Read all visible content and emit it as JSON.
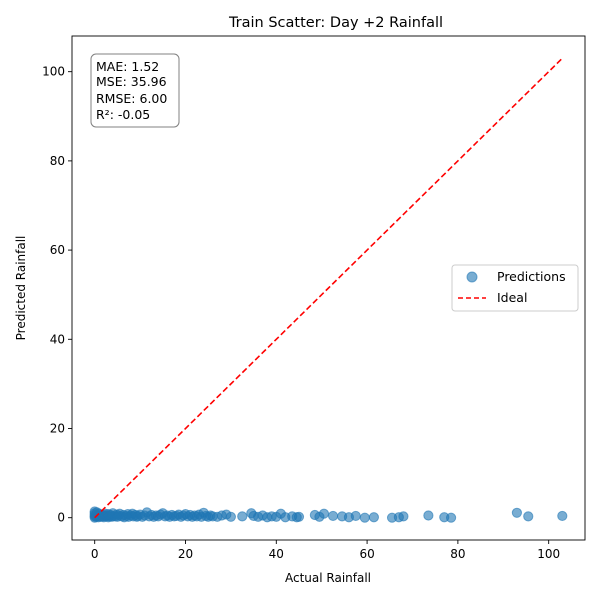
{
  "chart_data": {
    "type": "scatter",
    "title": "Train Scatter: Day +2 Rainfall",
    "xlabel": "Actual Rainfall",
    "ylabel": "Predicted Rainfall",
    "xlim": [
      -5,
      108
    ],
    "ylim": [
      -5,
      108
    ],
    "x_ticks": [
      0,
      20,
      40,
      60,
      80,
      100
    ],
    "y_ticks": [
      0,
      20,
      40,
      60,
      80,
      100
    ],
    "grid": false,
    "legend_position": "center-right",
    "legend": [
      {
        "label": "Predictions",
        "kind": "marker"
      },
      {
        "label": "Ideal",
        "kind": "dashed-line"
      }
    ],
    "stats_box": [
      "MAE: 1.52",
      "MSE: 35.96",
      "RMSE: 6.00",
      "R²: -0.05"
    ],
    "colors": {
      "points": "#1f77b4",
      "ideal": "#ff0000"
    },
    "ideal_line": {
      "x": [
        0,
        103
      ],
      "y": [
        0,
        103
      ]
    },
    "series": [
      {
        "name": "Predictions",
        "points": [
          [
            0,
            0
          ],
          [
            0,
            0.3
          ],
          [
            0,
            0.6
          ],
          [
            0,
            1.0
          ],
          [
            0,
            1.4
          ],
          [
            0.3,
            0.2
          ],
          [
            0.5,
            0.5
          ],
          [
            0.5,
            1.2
          ],
          [
            0.8,
            0.1
          ],
          [
            1.0,
            0.4
          ],
          [
            1.0,
            0.9
          ],
          [
            1.3,
            0.2
          ],
          [
            1.5,
            0.7
          ],
          [
            1.8,
            0.3
          ],
          [
            2.0,
            0.1
          ],
          [
            2.0,
            0.6
          ],
          [
            2.3,
            0.9
          ],
          [
            2.5,
            0.3
          ],
          [
            2.8,
            0.5
          ],
          [
            3.0,
            0.1
          ],
          [
            3.0,
            0.8
          ],
          [
            3.3,
            0.3
          ],
          [
            3.5,
            0.6
          ],
          [
            3.8,
            0.2
          ],
          [
            4.0,
            0.4
          ],
          [
            4.0,
            1.0
          ],
          [
            4.5,
            0.3
          ],
          [
            4.8,
            0.7
          ],
          [
            5.0,
            0.2
          ],
          [
            5.3,
            0.5
          ],
          [
            5.5,
            0.9
          ],
          [
            6.0,
            0.3
          ],
          [
            6.3,
            0.6
          ],
          [
            6.5,
            0.1
          ],
          [
            7.0,
            0.4
          ],
          [
            7.3,
            0.8
          ],
          [
            7.5,
            0.2
          ],
          [
            8.0,
            0.5
          ],
          [
            8.3,
            0.9
          ],
          [
            8.5,
            0.3
          ],
          [
            9.0,
            0.6
          ],
          [
            9.3,
            0.2
          ],
          [
            9.5,
            0.4
          ],
          [
            10.0,
            0.7
          ],
          [
            10.5,
            0.2
          ],
          [
            11.0,
            0.5
          ],
          [
            11.5,
            1.2
          ],
          [
            12.0,
            0.3
          ],
          [
            12.5,
            0.6
          ],
          [
            13.0,
            0.2
          ],
          [
            13.5,
            0.5
          ],
          [
            14.0,
            0.3
          ],
          [
            14.5,
            0.7
          ],
          [
            15.0,
            1.0
          ],
          [
            15.5,
            0.3
          ],
          [
            16.0,
            0.5
          ],
          [
            16.5,
            0.2
          ],
          [
            17.0,
            0.6
          ],
          [
            17.5,
            0.3
          ],
          [
            18.0,
            0.4
          ],
          [
            18.5,
            0.7
          ],
          [
            19.0,
            0.2
          ],
          [
            19.5,
            0.5
          ],
          [
            20.0,
            0.8
          ],
          [
            20.5,
            0.3
          ],
          [
            21.0,
            0.6
          ],
          [
            21.5,
            0.2
          ],
          [
            22.0,
            0.5
          ],
          [
            22.5,
            0.3
          ],
          [
            23.0,
            0.7
          ],
          [
            23.5,
            0.2
          ],
          [
            24.0,
            1.1
          ],
          [
            24.5,
            0.4
          ],
          [
            25.0,
            0.2
          ],
          [
            25.5,
            0.5
          ],
          [
            26.0,
            0.3
          ],
          [
            27.0,
            0.2
          ],
          [
            28.0,
            0.5
          ],
          [
            29.0,
            0.7
          ],
          [
            30.0,
            0.2
          ],
          [
            32.5,
            0.3
          ],
          [
            34.5,
            1.0
          ],
          [
            35.0,
            0.4
          ],
          [
            36.0,
            0.2
          ],
          [
            37.0,
            0.5
          ],
          [
            38.0,
            0.1
          ],
          [
            39.0,
            0.3
          ],
          [
            40.0,
            0.2
          ],
          [
            41.0,
            0.9
          ],
          [
            42.0,
            0.1
          ],
          [
            43.5,
            0.3
          ],
          [
            44.5,
            0.1
          ],
          [
            45.0,
            0.2
          ],
          [
            48.5,
            0.6
          ],
          [
            49.5,
            0.2
          ],
          [
            50.5,
            0.9
          ],
          [
            52.5,
            0.4
          ],
          [
            54.5,
            0.3
          ],
          [
            56.0,
            0.1
          ],
          [
            57.5,
            0.4
          ],
          [
            59.5,
            0.0
          ],
          [
            61.5,
            0.1
          ],
          [
            65.5,
            0.0
          ],
          [
            67.0,
            0.1
          ],
          [
            68.0,
            0.3
          ],
          [
            73.5,
            0.5
          ],
          [
            77.0,
            0.1
          ],
          [
            78.5,
            0.0
          ],
          [
            93.0,
            1.1
          ],
          [
            95.5,
            0.3
          ],
          [
            103.0,
            0.4
          ]
        ]
      }
    ]
  }
}
